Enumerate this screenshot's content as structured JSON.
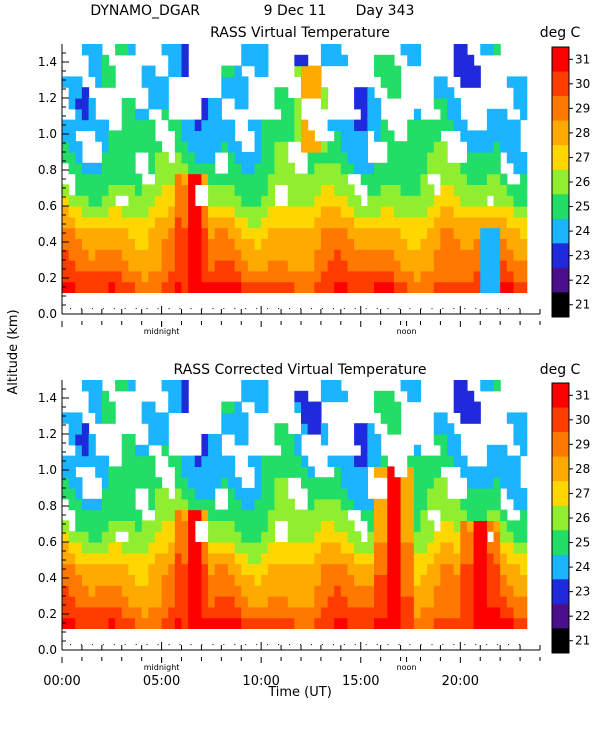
{
  "header": {
    "station": "DYNAMO_DGAR",
    "date": "9 Dec 11",
    "day": "Day 343"
  },
  "shared_axes": {
    "ylabel": "Altitude (km)",
    "xlabel": "Time (UT)",
    "x_tick_labels": [
      "00:00",
      "05:00",
      "10:00",
      "15:00",
      "20:00"
    ],
    "y_tick_labels": [
      "0.0",
      "0.2",
      "0.4",
      "0.6",
      "0.8",
      "1.0",
      "1.2",
      "1.4"
    ],
    "midnight_label": "midnight",
    "noon_label": "noon",
    "units": "deg C"
  },
  "colorbar": {
    "labels": [
      "31",
      "30",
      "29",
      "28",
      "27",
      "26",
      "25",
      "24",
      "23",
      "22",
      "21"
    ],
    "colors": [
      "#ff0000",
      "#ff3c00",
      "#ff7800",
      "#ffaa00",
      "#ffd700",
      "#90ee30",
      "#22dd66",
      "#1ab4ff",
      "#1e2adb",
      "#4a0f8a",
      "#000000"
    ]
  },
  "chart_data": [
    {
      "type": "heatmap",
      "title": "RASS Virtual Temperature",
      "xlabel": "",
      "ylabel": "Altitude (km)",
      "x_unit": "hour UT",
      "xlim": [
        0,
        24
      ],
      "ylim": [
        0,
        1.5
      ],
      "range_gate_start_km": 0.12,
      "value_range_degC": [
        21,
        31
      ],
      "profile_by_altitude": {
        "altitude_km": [
          0.15,
          0.25,
          0.35,
          0.45,
          0.55,
          0.65,
          0.75,
          0.85,
          1.0,
          1.2
        ],
        "temperature_degC": [
          30,
          29,
          28.5,
          28,
          27,
          26,
          25.5,
          25,
          24.5,
          24
        ]
      },
      "features": [
        {
          "note": "warm plume",
          "hour_UT": 6.6,
          "altitude_km": [
            0.12,
            0.8
          ],
          "temperature_degC": 31
        },
        {
          "note": "warm/mixed column",
          "hour_UT": 12.5,
          "altitude_km": [
            0.9,
            1.4
          ],
          "temperature_degC": 28
        },
        {
          "note": "cool dip",
          "hour_UT": 21.5,
          "altitude_km": [
            0.15,
            0.5
          ],
          "temperature_degC": 24
        }
      ]
    },
    {
      "type": "heatmap",
      "title": "RASS Corrected Virtual Temperature",
      "xlabel": "Time (UT)",
      "ylabel": "Altitude (km)",
      "x_unit": "hour UT",
      "xlim": [
        0,
        24
      ],
      "ylim": [
        0,
        1.5
      ],
      "range_gate_start_km": 0.12,
      "value_range_degC": [
        21,
        31
      ],
      "profile_by_altitude": {
        "altitude_km": [
          0.15,
          0.25,
          0.35,
          0.45,
          0.55,
          0.65,
          0.75,
          0.85,
          1.0,
          1.2
        ],
        "temperature_degC": [
          30,
          29,
          28.5,
          28,
          27,
          26,
          25.5,
          25,
          24.5,
          24
        ]
      },
      "features": [
        {
          "note": "warm plume",
          "hour_UT": 6.6,
          "altitude_km": [
            0.12,
            0.8
          ],
          "temperature_degC": 31
        },
        {
          "note": "warm plume",
          "hour_UT": 16.6,
          "altitude_km": [
            0.12,
            1.0
          ],
          "temperature_degC": 31
        },
        {
          "note": "warm block",
          "hour_UT": 21,
          "altitude_km": [
            0.12,
            0.7
          ],
          "temperature_degC": 31
        }
      ]
    }
  ]
}
